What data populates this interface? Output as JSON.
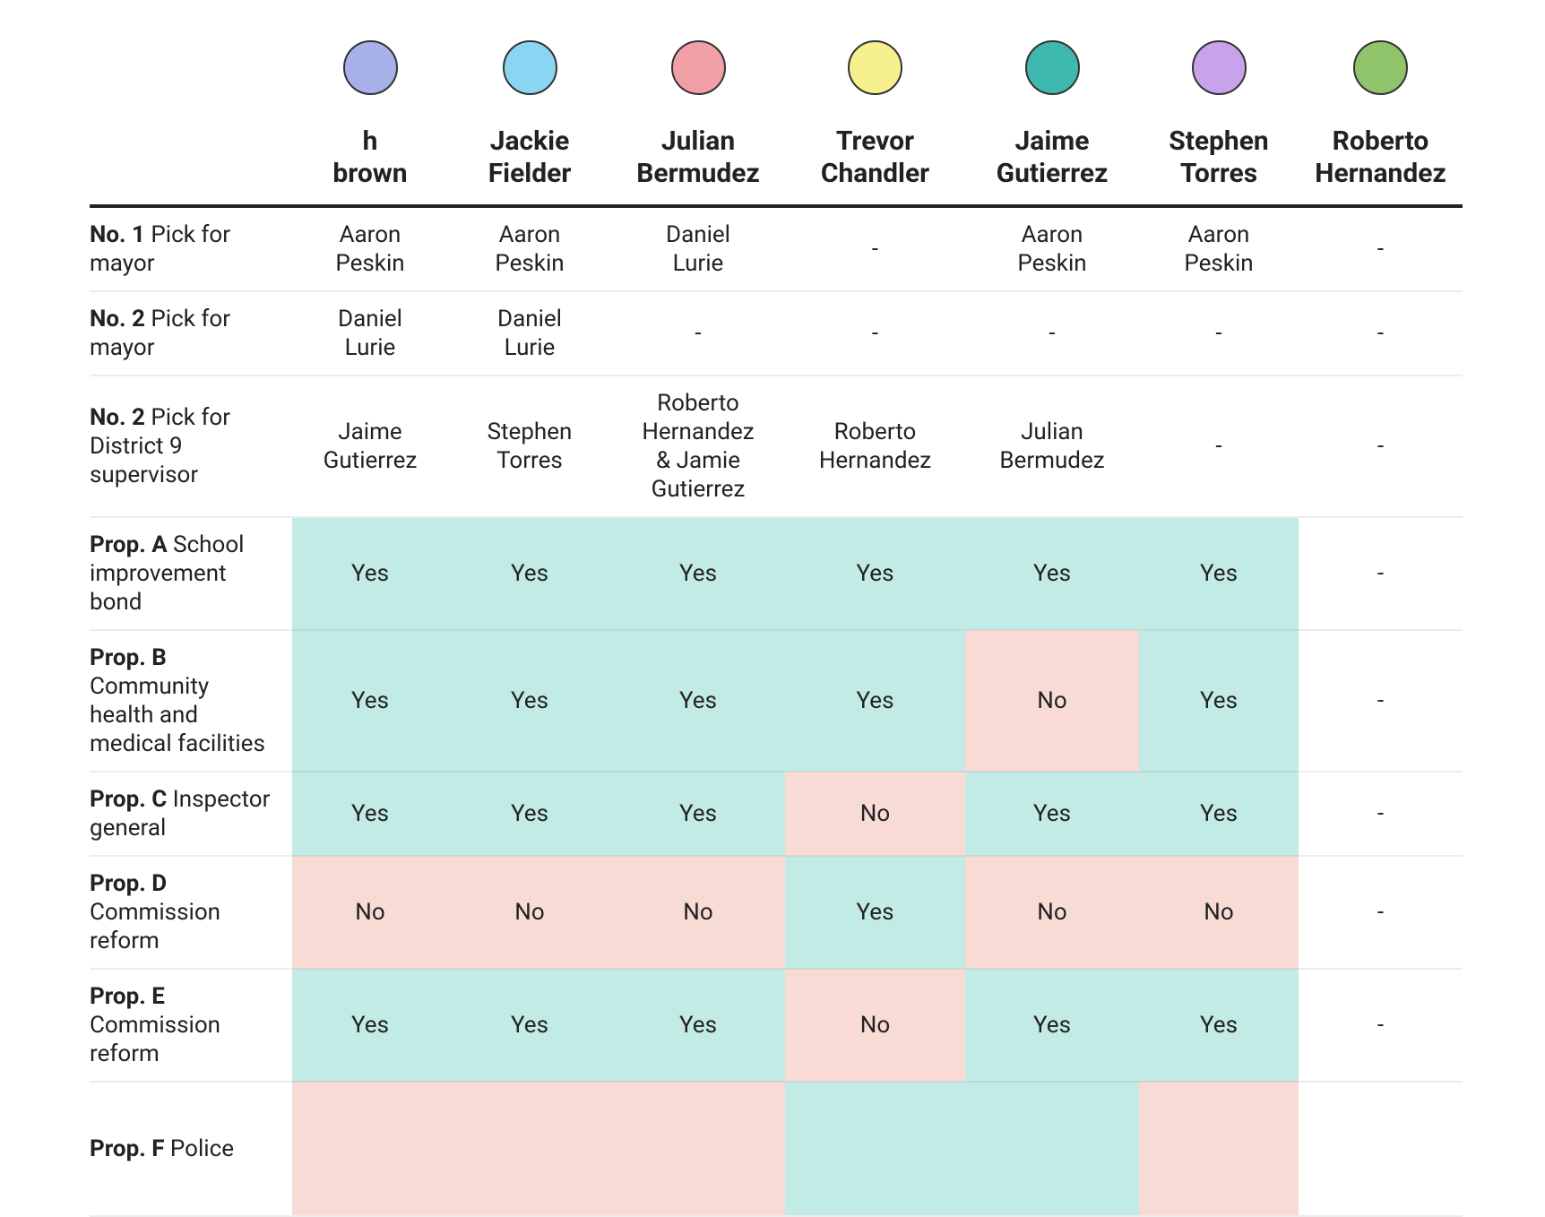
{
  "colors": {
    "Yes": "#c3ebe6",
    "No": "#f9dbd6"
  },
  "columns": [
    "h brown",
    "Jackie Fielder",
    "Julian Bermudez",
    "Trevor Chandler",
    "Jaime Gutierrez",
    "Stephen Torres",
    "Roberto Hernandez"
  ],
  "rows": [
    {
      "bold": "No. 1",
      "label": "Pick for mayor",
      "cells": [
        "Aaron Peskin",
        "Aaron Peskin",
        "Daniel Lurie",
        "-",
        "Aaron Peskin",
        "Aaron Peskin",
        "-"
      ]
    },
    {
      "bold": "No. 2",
      "label": "Pick for mayor",
      "cells": [
        "Daniel Lurie",
        "Daniel Lurie",
        "-",
        "-",
        "-",
        "-",
        "-"
      ]
    },
    {
      "bold": "No. 2",
      "label": "Pick for District 9 supervisor",
      "cells": [
        "Jaime Gutierrez",
        "Stephen Torres",
        "Roberto Hernandez & Jamie Gutierrez",
        "Roberto Hernandez",
        "Julian Bermudez",
        "-",
        "-"
      ]
    },
    {
      "bold": "Prop. A",
      "label": "School improvement bond",
      "cells": [
        "Yes",
        "Yes",
        "Yes",
        "Yes",
        "Yes",
        "Yes",
        "-"
      ]
    },
    {
      "bold": "Prop. B",
      "label": "Community health and medical facilities",
      "cells": [
        "Yes",
        "Yes",
        "Yes",
        "Yes",
        "No",
        "Yes",
        "-"
      ]
    },
    {
      "bold": "Prop. C",
      "label": "Inspector general",
      "cells": [
        "Yes",
        "Yes",
        "Yes",
        "No",
        "Yes",
        "Yes",
        "-"
      ]
    },
    {
      "bold": "Prop. D",
      "label": "Commission reform",
      "cells": [
        "No",
        "No",
        "No",
        "Yes",
        "No",
        "No",
        "-"
      ]
    },
    {
      "bold": "Prop. E",
      "label": "Commission reform",
      "cells": [
        "Yes",
        "Yes",
        "Yes",
        "No",
        "Yes",
        "Yes",
        "-"
      ]
    },
    {
      "bold": "Prop. F",
      "label": "Police",
      "shading": [
        "#f9dbd6",
        "#f9dbd6",
        "#f9dbd6",
        "#c3ebe6",
        "#c3ebe6",
        "#f9dbd6",
        null
      ]
    }
  ]
}
